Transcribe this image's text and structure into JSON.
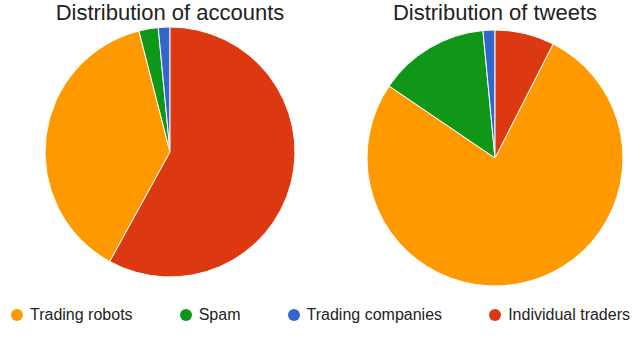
{
  "chart_data": [
    {
      "type": "pie",
      "title": "Distribution of accounts",
      "categories": [
        "Trading robots",
        "Spam",
        "Trading companies",
        "Individual traders"
      ],
      "values": [
        38,
        2.5,
        1.5,
        58
      ],
      "colors": [
        "#ff9900",
        "#109618",
        "#3366cc",
        "#dc3912"
      ],
      "legend": "bottom"
    },
    {
      "type": "pie",
      "title": "Distribution of tweets",
      "categories": [
        "Trading robots",
        "Spam",
        "Trading companies",
        "Individual traders"
      ],
      "values": [
        77,
        14,
        1.5,
        7.5
      ],
      "colors": [
        "#ff9900",
        "#109618",
        "#3366cc",
        "#dc3912"
      ]
    }
  ]
}
